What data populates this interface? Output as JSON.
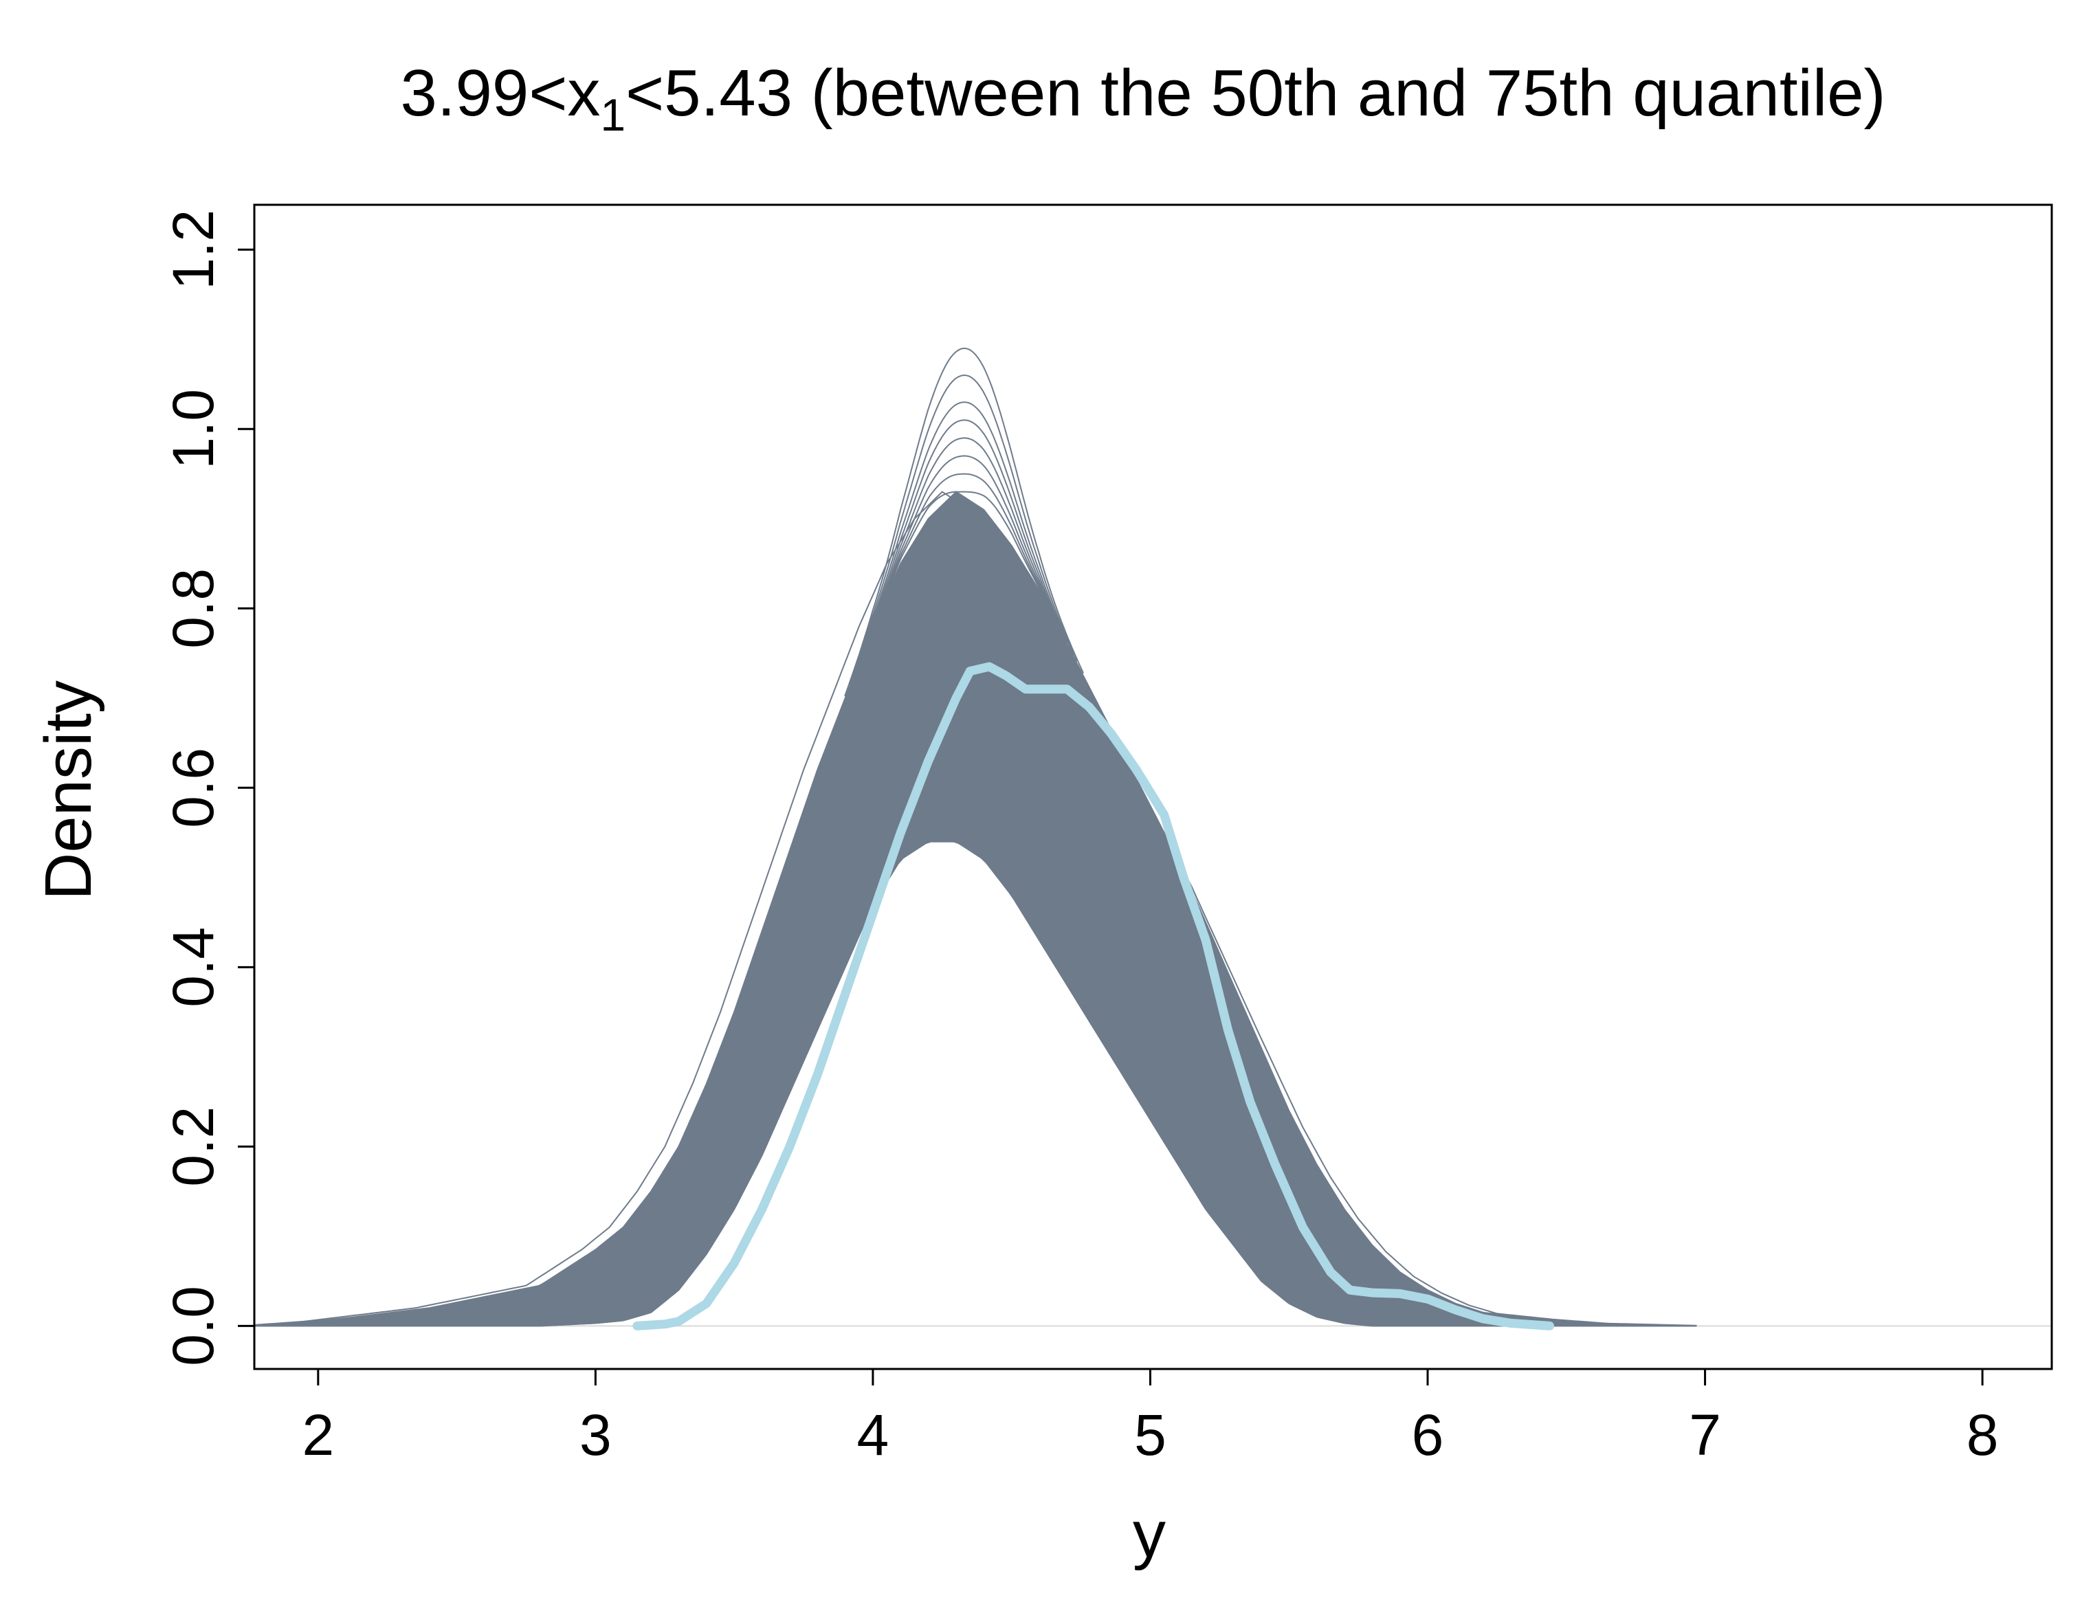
{
  "chart_data": {
    "type": "line",
    "title_main": "3.99<x",
    "title_sub": "1",
    "title_rest": "<5.43 (between the 50th and 75th quantile)",
    "xlabel": "y",
    "ylabel": "Density",
    "xlim": [
      1.77,
      8.25
    ],
    "ylim": [
      -0.048,
      1.25
    ],
    "x_ticks": [
      {
        "value": 2,
        "label": "2"
      },
      {
        "value": 3,
        "label": "3"
      },
      {
        "value": 4,
        "label": "4"
      },
      {
        "value": 5,
        "label": "5"
      },
      {
        "value": 6,
        "label": "6"
      },
      {
        "value": 7,
        "label": "7"
      },
      {
        "value": 8,
        "label": "8"
      }
    ],
    "y_ticks": [
      {
        "value": 0.0,
        "label": "0.0"
      },
      {
        "value": 0.2,
        "label": "0.2"
      },
      {
        "value": 0.4,
        "label": "0.4"
      },
      {
        "value": 0.6,
        "label": "0.6"
      },
      {
        "value": 0.8,
        "label": "0.8"
      },
      {
        "value": 1.0,
        "label": "1.0"
      },
      {
        "value": 1.2,
        "label": "1.2"
      }
    ],
    "grid": false,
    "baseline": 0,
    "colors": {
      "replicates": "#6e7b8b",
      "observed": "#add8e6",
      "baseline": "#d9d9d9"
    },
    "series": [
      {
        "role": "replicate-envelope-upper",
        "x": [
          1.77,
          2.0,
          2.4,
          2.8,
          3.0,
          3.1,
          3.2,
          3.3,
          3.4,
          3.5,
          3.6,
          3.7,
          3.8,
          3.9,
          4.0,
          4.1,
          4.2,
          4.3,
          4.4,
          4.5,
          4.6,
          4.7,
          4.8,
          4.9,
          5.0,
          5.1,
          5.2,
          5.3,
          5.4,
          5.5,
          5.6,
          5.7,
          5.8,
          5.9,
          6.0,
          6.1,
          6.2,
          6.4,
          6.6,
          6.97
        ],
        "y": [
          0.0,
          0.005,
          0.02,
          0.045,
          0.085,
          0.11,
          0.15,
          0.2,
          0.27,
          0.35,
          0.44,
          0.53,
          0.62,
          0.7,
          0.78,
          0.85,
          0.9,
          0.93,
          0.91,
          0.87,
          0.82,
          0.76,
          0.7,
          0.64,
          0.58,
          0.52,
          0.45,
          0.38,
          0.31,
          0.24,
          0.18,
          0.13,
          0.09,
          0.06,
          0.04,
          0.025,
          0.015,
          0.008,
          0.003,
          0.0
        ]
      },
      {
        "role": "replicate-envelope-lower",
        "x": [
          1.77,
          2.8,
          3.0,
          3.1,
          3.2,
          3.3,
          3.4,
          3.5,
          3.6,
          3.7,
          3.8,
          3.9,
          4.0,
          4.1,
          4.2,
          4.3,
          4.4,
          4.5,
          4.6,
          4.7,
          4.8,
          4.9,
          5.0,
          5.1,
          5.2,
          5.3,
          5.4,
          5.5,
          5.6,
          5.7,
          5.8,
          6.0,
          6.97
        ],
        "y": [
          0.0,
          0.0,
          0.003,
          0.006,
          0.015,
          0.04,
          0.08,
          0.13,
          0.19,
          0.26,
          0.33,
          0.4,
          0.47,
          0.52,
          0.54,
          0.54,
          0.52,
          0.48,
          0.43,
          0.38,
          0.33,
          0.28,
          0.23,
          0.18,
          0.13,
          0.09,
          0.05,
          0.025,
          0.01,
          0.003,
          0.0,
          0.0,
          0.0
        ]
      },
      {
        "role": "replicate-peak-spikes",
        "x": [
          4.18,
          4.25,
          4.3,
          4.33,
          4.36,
          4.4,
          4.48
        ],
        "y": [
          0.88,
          0.96,
          1.03,
          1.09,
          1.03,
          0.96,
          0.88
        ]
      },
      {
        "role": "observed",
        "x": [
          3.15,
          3.25,
          3.3,
          3.4,
          3.5,
          3.6,
          3.7,
          3.8,
          3.9,
          4.0,
          4.1,
          4.2,
          4.3,
          4.35,
          4.42,
          4.48,
          4.55,
          4.62,
          4.7,
          4.78,
          4.86,
          4.95,
          5.05,
          5.12,
          5.2,
          5.28,
          5.36,
          5.45,
          5.55,
          5.65,
          5.72,
          5.8,
          5.9,
          6.0,
          6.1,
          6.2,
          6.3,
          6.44
        ],
        "y": [
          0.0,
          0.002,
          0.005,
          0.025,
          0.07,
          0.13,
          0.2,
          0.28,
          0.37,
          0.46,
          0.55,
          0.63,
          0.7,
          0.73,
          0.735,
          0.725,
          0.71,
          0.71,
          0.71,
          0.69,
          0.66,
          0.62,
          0.57,
          0.5,
          0.43,
          0.33,
          0.25,
          0.18,
          0.11,
          0.06,
          0.04,
          0.037,
          0.036,
          0.03,
          0.018,
          0.008,
          0.003,
          0.0
        ]
      }
    ]
  }
}
